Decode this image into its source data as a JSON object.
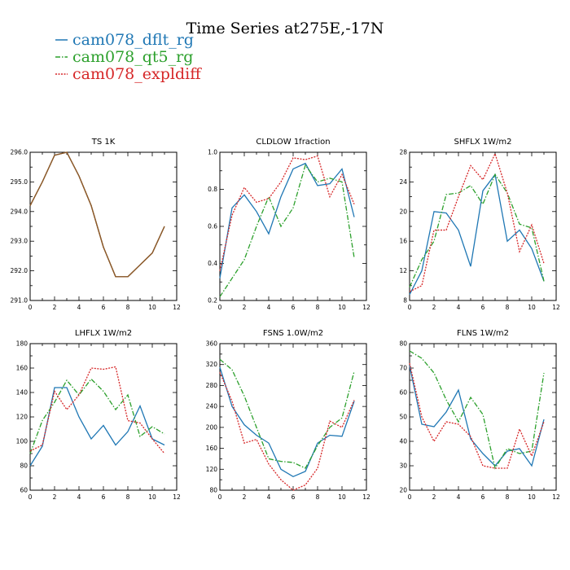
{
  "title": "Time Series at275E,-17N",
  "legend": [
    {
      "name": "cam078_dflt_rg",
      "color": "#1f77b4",
      "dash": ""
    },
    {
      "name": "cam078_qt5_rg",
      "color": "#2ca02c",
      "dash": "6,2,1.5,2"
    },
    {
      "name": "cam078_expldiff",
      "color": "#d62728",
      "dash": "2,1.5"
    }
  ],
  "chart_data": [
    {
      "type": "line",
      "title": "TS   1K",
      "x": [
        0,
        1,
        2,
        3,
        4,
        5,
        6,
        7,
        8,
        9,
        10,
        11
      ],
      "xlim": [
        0,
        12
      ],
      "xticks": [
        0,
        2,
        4,
        6,
        8,
        10,
        12
      ],
      "ylim": [
        291.0,
        296.0
      ],
      "yticks": [
        291.0,
        292.0,
        293.0,
        294.0,
        295.0,
        296.0
      ],
      "ytick_labels": [
        "291.0",
        "292.0",
        "293.0",
        "294.0",
        "295.0",
        "296.0"
      ],
      "overlaid_color": "#8b5a2b",
      "series": [
        {
          "name": "cam078_dflt_rg",
          "values": [
            294.2,
            295.0,
            295.9,
            296.0,
            295.2,
            294.2,
            292.8,
            291.8,
            291.8,
            292.2,
            292.6,
            293.5
          ]
        },
        {
          "name": "cam078_qt5_rg",
          "values": [
            294.2,
            295.0,
            295.9,
            296.0,
            295.2,
            294.2,
            292.8,
            291.8,
            291.8,
            292.2,
            292.6,
            293.5
          ]
        },
        {
          "name": "cam078_expldiff",
          "values": [
            294.2,
            295.0,
            295.9,
            296.0,
            295.2,
            294.2,
            292.8,
            291.8,
            291.8,
            292.2,
            292.6,
            293.5
          ]
        }
      ]
    },
    {
      "type": "line",
      "title": "CLDLOW   1fraction",
      "x": [
        0,
        1,
        2,
        3,
        4,
        5,
        6,
        7,
        8,
        9,
        10,
        11
      ],
      "xlim": [
        0,
        12
      ],
      "xticks": [
        0,
        2,
        4,
        6,
        8,
        10,
        12
      ],
      "ylim": [
        0.2,
        1.0
      ],
      "yticks": [
        0.2,
        0.4,
        0.6,
        0.8,
        1.0
      ],
      "ytick_labels": [
        "0.2",
        "0.4",
        "0.6",
        "0.8",
        "1.0"
      ],
      "series": [
        {
          "name": "cam078_dflt_rg",
          "values": [
            0.32,
            0.7,
            0.77,
            0.68,
            0.56,
            0.76,
            0.91,
            0.94,
            0.82,
            0.83,
            0.91,
            0.65
          ]
        },
        {
          "name": "cam078_qt5_rg",
          "values": [
            0.22,
            0.32,
            0.42,
            0.6,
            0.76,
            0.6,
            0.7,
            0.93,
            0.84,
            0.86,
            0.84,
            0.43
          ]
        },
        {
          "name": "cam078_expldiff",
          "values": [
            0.36,
            0.66,
            0.81,
            0.73,
            0.75,
            0.84,
            0.97,
            0.96,
            0.98,
            0.76,
            0.88,
            0.72
          ]
        }
      ]
    },
    {
      "type": "line",
      "title": "SHFLX   1W/m2",
      "x": [
        0,
        1,
        2,
        3,
        4,
        5,
        6,
        7,
        8,
        9,
        10,
        11
      ],
      "xlim": [
        0,
        12
      ],
      "xticks": [
        0,
        2,
        4,
        6,
        8,
        10,
        12
      ],
      "ylim": [
        8,
        28
      ],
      "yticks": [
        8,
        12,
        16,
        20,
        24,
        28
      ],
      "ytick_labels": [
        "8",
        "12",
        "16",
        "20",
        "24",
        "28"
      ],
      "series": [
        {
          "name": "cam078_dflt_rg",
          "values": [
            8.8,
            12.0,
            20.0,
            19.8,
            17.5,
            12.6,
            22.8,
            25.0,
            16.0,
            17.5,
            15.0,
            10.6
          ]
        },
        {
          "name": "cam078_qt5_rg",
          "values": [
            9.8,
            13.5,
            16.0,
            22.3,
            22.5,
            23.5,
            21.0,
            25.0,
            22.5,
            18.3,
            17.8,
            10.6
          ]
        },
        {
          "name": "cam078_expldiff",
          "values": [
            9.2,
            10.0,
            17.5,
            17.5,
            22.0,
            26.2,
            24.3,
            27.8,
            22.5,
            14.6,
            18.2,
            13.0
          ]
        }
      ]
    },
    {
      "type": "line",
      "title": "LHFLX   1W/m2",
      "x": [
        0,
        1,
        2,
        3,
        4,
        5,
        6,
        7,
        8,
        9,
        10,
        11
      ],
      "xlim": [
        0,
        12
      ],
      "xticks": [
        0,
        2,
        4,
        6,
        8,
        10,
        12
      ],
      "ylim": [
        60,
        180
      ],
      "yticks": [
        60,
        80,
        100,
        120,
        140,
        160,
        180
      ],
      "ytick_labels": [
        "60",
        "80",
        "100",
        "120",
        "140",
        "160",
        "180"
      ],
      "series": [
        {
          "name": "cam078_dflt_rg",
          "values": [
            80,
            96,
            144,
            144,
            120,
            102,
            113,
            97,
            108,
            129,
            102,
            97
          ]
        },
        {
          "name": "cam078_qt5_rg",
          "values": [
            90,
            117,
            132,
            150,
            138,
            151,
            141,
            126,
            138,
            104,
            112,
            106
          ]
        },
        {
          "name": "cam078_expldiff",
          "values": [
            92,
            97,
            141,
            126,
            138,
            160,
            159,
            161,
            117,
            115,
            102,
            90
          ]
        }
      ]
    },
    {
      "type": "line",
      "title": "FSNS   1.0W/m2",
      "x": [
        0,
        1,
        2,
        3,
        4,
        5,
        6,
        7,
        8,
        9,
        10,
        11
      ],
      "xlim": [
        0,
        12
      ],
      "xticks": [
        0,
        2,
        4,
        6,
        8,
        10,
        12
      ],
      "ylim": [
        80,
        360
      ],
      "yticks": [
        80,
        120,
        160,
        200,
        240,
        280,
        320,
        360
      ],
      "ytick_labels": [
        "80",
        "120",
        "160",
        "200",
        "240",
        "280",
        "320",
        "360"
      ],
      "series": [
        {
          "name": "cam078_dflt_rg",
          "values": [
            315,
            240,
            205,
            185,
            170,
            120,
            106,
            116,
            170,
            185,
            183,
            250
          ]
        },
        {
          "name": "cam078_qt5_rg",
          "values": [
            330,
            310,
            260,
            200,
            140,
            135,
            133,
            122,
            165,
            200,
            218,
            307
          ]
        },
        {
          "name": "cam078_expldiff",
          "values": [
            305,
            250,
            170,
            177,
            130,
            100,
            80,
            90,
            122,
            212,
            200,
            252
          ]
        }
      ]
    },
    {
      "type": "line",
      "title": "FLNS   1W/m2",
      "x": [
        0,
        1,
        2,
        3,
        4,
        5,
        6,
        7,
        8,
        9,
        10,
        11
      ],
      "xlim": [
        0,
        12
      ],
      "xticks": [
        0,
        2,
        4,
        6,
        8,
        10,
        12
      ],
      "ylim": [
        20,
        80
      ],
      "yticks": [
        20,
        30,
        40,
        50,
        60,
        70,
        80
      ],
      "ytick_labels": [
        "20",
        "30",
        "40",
        "50",
        "60",
        "70",
        "80"
      ],
      "series": [
        {
          "name": "cam078_dflt_rg",
          "values": [
            71,
            47,
            46,
            52,
            61,
            41,
            35,
            30,
            36,
            37,
            30,
            49
          ]
        },
        {
          "name": "cam078_qt5_rg",
          "values": [
            77,
            74,
            68,
            57,
            48,
            58,
            51,
            29,
            37,
            35,
            36,
            68
          ]
        },
        {
          "name": "cam078_expldiff",
          "values": [
            72,
            50,
            40,
            48,
            47,
            42,
            30,
            29,
            29,
            45,
            34,
            48
          ]
        }
      ]
    }
  ]
}
